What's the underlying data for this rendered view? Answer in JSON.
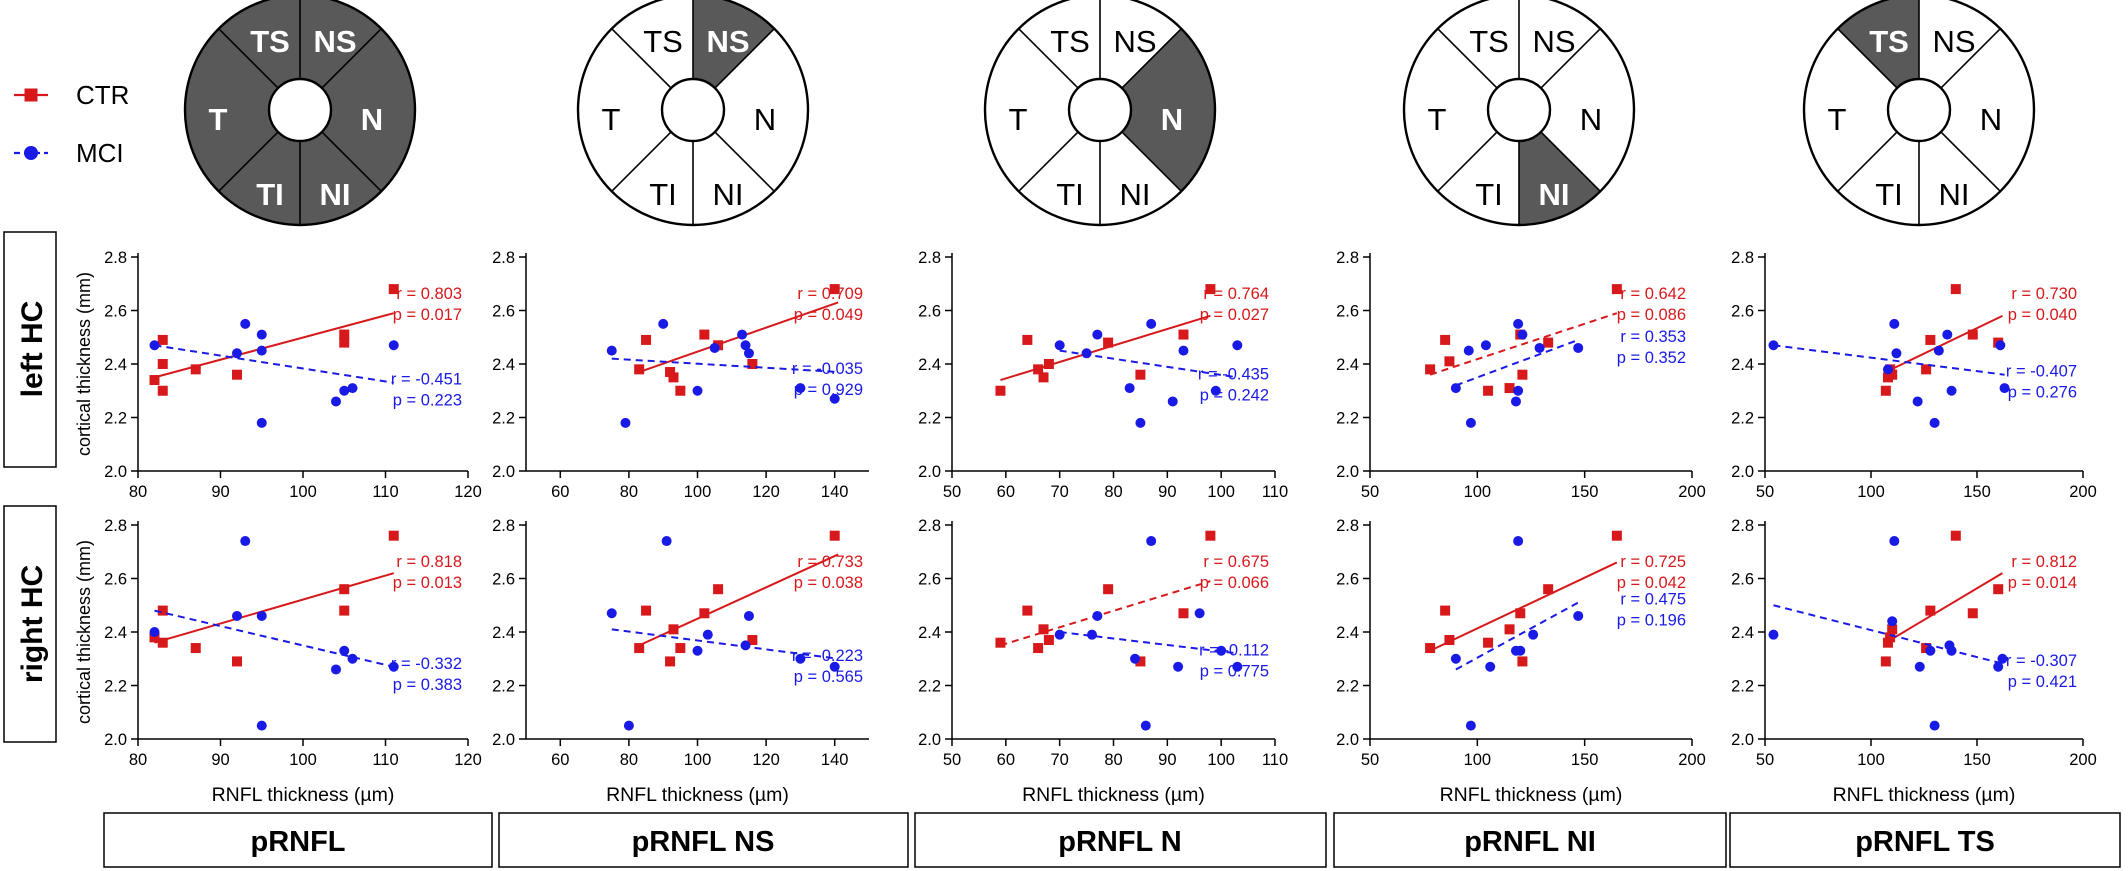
{
  "legend": {
    "items": [
      {
        "label": "CTR",
        "color": "#d7191c",
        "marker": "square",
        "line": "solid"
      },
      {
        "label": "MCI",
        "color": "#1a1ae6",
        "marker": "circle",
        "line": "dashed"
      }
    ]
  },
  "row_labels": [
    "left HC",
    "right HC"
  ],
  "column_labels": [
    "pRNFL",
    "pRNFL NS",
    "pRNFL N",
    "pRNFL NI",
    "pRNFL TS"
  ],
  "y_axis_label": "cortical thickness (mm)",
  "x_axis_label": "RNFL thickness  (µm)",
  "sector_labels": [
    "TS",
    "NS",
    "N",
    "NI",
    "TI",
    "T"
  ],
  "highlighted_sectors": [
    [
      "TS",
      "NS",
      "N",
      "NI",
      "TI",
      "T"
    ],
    [
      "NS"
    ],
    [
      "N"
    ],
    [
      "NI"
    ],
    [
      "TS"
    ]
  ],
  "colors": {
    "ctr": "#d7191c",
    "mci": "#1a1ae6",
    "sector_fill": "#595959",
    "sector_text_light": "#ffffff",
    "sector_text_dark": "#000000"
  },
  "chart_data": [
    {
      "type": "scatter",
      "column": "pRNFL",
      "row": "left HC",
      "xlim": [
        80,
        120
      ],
      "xticks": [
        80,
        90,
        100,
        110,
        120
      ],
      "ylim": [
        2.0,
        2.8
      ],
      "yticks": [
        "2.0",
        "2.2",
        "2.4",
        "2.6",
        "2.8"
      ],
      "xlabel": "",
      "ylabel": "cortical thickness (mm)",
      "series": [
        {
          "name": "CTR",
          "x": [
            82,
            83,
            83,
            83,
            87,
            92,
            105,
            105,
            111
          ],
          "y": [
            2.34,
            2.49,
            2.4,
            2.3,
            2.38,
            2.36,
            2.51,
            2.48,
            2.68
          ],
          "fit": [
            [
              82,
              2.35
            ],
            [
              111,
              2.59
            ]
          ],
          "fit_style": "solid",
          "r": "r = 0.803",
          "p": "p = 0.017"
        },
        {
          "name": "MCI",
          "x": [
            82,
            92,
            93,
            95,
            95,
            95,
            104,
            105,
            106,
            111
          ],
          "y": [
            2.47,
            2.44,
            2.55,
            2.51,
            2.45,
            2.18,
            2.26,
            2.3,
            2.31,
            2.47
          ],
          "fit": [
            [
              82,
              2.47
            ],
            [
              111,
              2.33
            ]
          ],
          "fit_style": "dashed",
          "r": "r = -0.451",
          "p": "p = 0.223"
        }
      ]
    },
    {
      "type": "scatter",
      "column": "pRNFL NS",
      "row": "left HC",
      "xlim": [
        50,
        150
      ],
      "xticks": [
        60,
        80,
        100,
        120,
        140
      ],
      "ylim": [
        2.0,
        2.8
      ],
      "yticks": [
        "2.0",
        "2.2",
        "2.4",
        "2.6",
        "2.8"
      ],
      "series": [
        {
          "name": "CTR",
          "x": [
            83,
            85,
            92,
            93,
            95,
            102,
            106,
            116,
            140
          ],
          "y": [
            2.38,
            2.49,
            2.37,
            2.35,
            2.3,
            2.51,
            2.47,
            2.4,
            2.68
          ],
          "fit": [
            [
              83,
              2.37
            ],
            [
              141,
              2.63
            ]
          ],
          "fit_style": "solid",
          "r": "r = 0.709",
          "p": "p = 0.049"
        },
        {
          "name": "MCI",
          "x": [
            75,
            79,
            90,
            100,
            105,
            113,
            114,
            115,
            130,
            140
          ],
          "y": [
            2.45,
            2.18,
            2.55,
            2.3,
            2.46,
            2.51,
            2.47,
            2.44,
            2.31,
            2.27
          ],
          "fit": [
            [
              75,
              2.42
            ],
            [
              141,
              2.37
            ]
          ],
          "fit_style": "dashed",
          "r": "r = -0.035",
          "p": "p = 0.929"
        }
      ]
    },
    {
      "type": "scatter",
      "column": "pRNFL N",
      "row": "left HC",
      "xlim": [
        50,
        110
      ],
      "xticks": [
        50,
        60,
        70,
        80,
        90,
        100,
        110
      ],
      "ylim": [
        2.0,
        2.8
      ],
      "yticks": [
        "2.0",
        "2.2",
        "2.4",
        "2.6",
        "2.8"
      ],
      "series": [
        {
          "name": "CTR",
          "x": [
            59,
            64,
            66,
            67,
            68,
            79,
            85,
            93,
            98
          ],
          "y": [
            2.3,
            2.49,
            2.38,
            2.35,
            2.4,
            2.48,
            2.36,
            2.51,
            2.68
          ],
          "fit": [
            [
              59,
              2.34
            ],
            [
              98,
              2.58
            ]
          ],
          "fit_style": "solid",
          "r": "r = 0.764",
          "p": "p = 0.027"
        },
        {
          "name": "MCI",
          "x": [
            70,
            75,
            77,
            83,
            85,
            87,
            91,
            93,
            99,
            103
          ],
          "y": [
            2.47,
            2.44,
            2.51,
            2.31,
            2.18,
            2.55,
            2.26,
            2.45,
            2.3,
            2.47
          ],
          "fit": [
            [
              70,
              2.45
            ],
            [
              103,
              2.35
            ]
          ],
          "fit_style": "dashed",
          "r": "r = -0.435",
          "p": "p = 0.242"
        }
      ]
    },
    {
      "type": "scatter",
      "column": "pRNFL NI",
      "row": "left HC",
      "xlim": [
        50,
        200
      ],
      "xticks": [
        50,
        100,
        150,
        200
      ],
      "ylim": [
        2.0,
        2.8
      ],
      "yticks": [
        "2.0",
        "2.2",
        "2.4",
        "2.6",
        "2.8"
      ],
      "series": [
        {
          "name": "CTR",
          "x": [
            78,
            85,
            87,
            105,
            115,
            120,
            121,
            133,
            165
          ],
          "y": [
            2.38,
            2.49,
            2.41,
            2.3,
            2.31,
            2.51,
            2.36,
            2.48,
            2.68
          ],
          "fit": [
            [
              78,
              2.36
            ],
            [
              165,
              2.59
            ]
          ],
          "fit_style": "dashed",
          "r": "r = 0.642",
          "p": "p = 0.086"
        },
        {
          "name": "MCI",
          "x": [
            90,
            96,
            97,
            104,
            118,
            119,
            119,
            121,
            129,
            147
          ],
          "y": [
            2.31,
            2.45,
            2.18,
            2.47,
            2.26,
            2.3,
            2.55,
            2.51,
            2.46,
            2.46
          ],
          "fit": [
            [
              90,
              2.32
            ],
            [
              147,
              2.49
            ]
          ],
          "fit_style": "dashed",
          "r": "r = 0.353",
          "p": "p = 0.352"
        }
      ]
    },
    {
      "type": "scatter",
      "column": "pRNFL TS",
      "row": "left HC",
      "xlim": [
        50,
        200
      ],
      "xticks": [
        50,
        100,
        150,
        200
      ],
      "ylim": [
        2.0,
        2.8
      ],
      "yticks": [
        "2.0",
        "2.2",
        "2.4",
        "2.6",
        "2.8"
      ],
      "series": [
        {
          "name": "CTR",
          "x": [
            107,
            108,
            109,
            110,
            126,
            128,
            140,
            148,
            160
          ],
          "y": [
            2.3,
            2.35,
            2.38,
            2.36,
            2.38,
            2.49,
            2.68,
            2.51,
            2.48
          ],
          "fit": [
            [
              107,
              2.37
            ],
            [
              162,
              2.58
            ]
          ],
          "fit_style": "solid",
          "r": "r = 0.730",
          "p": "p = 0.040"
        },
        {
          "name": "MCI",
          "x": [
            54,
            108,
            111,
            112,
            122,
            130,
            132,
            136,
            138,
            161,
            163
          ],
          "y": [
            2.47,
            2.38,
            2.55,
            2.44,
            2.26,
            2.18,
            2.45,
            2.51,
            2.3,
            2.47,
            2.31
          ],
          "fit": [
            [
              54,
              2.47
            ],
            [
              163,
              2.36
            ]
          ],
          "fit_style": "dashed",
          "r": "r = -0.407",
          "p": "p = 0.276"
        }
      ]
    },
    {
      "type": "scatter",
      "column": "pRNFL",
      "row": "right HC",
      "xlim": [
        80,
        120
      ],
      "xticks": [
        80,
        90,
        100,
        110,
        120
      ],
      "ylim": [
        2.0,
        2.8
      ],
      "yticks": [
        "2.0",
        "2.2",
        "2.4",
        "2.6",
        "2.8"
      ],
      "xlabel": "RNFL thickness  (µm)",
      "ylabel": "cortical thickness (mm)",
      "series": [
        {
          "name": "CTR",
          "x": [
            82,
            83,
            83,
            87,
            92,
            105,
            105,
            111
          ],
          "y": [
            2.38,
            2.48,
            2.36,
            2.34,
            2.29,
            2.56,
            2.48,
            2.76
          ],
          "fit": [
            [
              82,
              2.36
            ],
            [
              111,
              2.62
            ]
          ],
          "fit_style": "solid",
          "r": "r = 0.818",
          "p": "p = 0.013",
          "label_pos": "upper"
        },
        {
          "name": "MCI",
          "x": [
            82,
            92,
            93,
            95,
            95,
            104,
            105,
            106,
            111
          ],
          "y": [
            2.4,
            2.46,
            2.74,
            2.46,
            2.05,
            2.26,
            2.33,
            2.3,
            2.27
          ],
          "fit": [
            [
              82,
              2.48
            ],
            [
              111,
              2.27
            ]
          ],
          "fit_style": "dashed",
          "r": "r = -0.332",
          "p": "p = 0.383"
        }
      ]
    },
    {
      "type": "scatter",
      "column": "pRNFL NS",
      "row": "right HC",
      "xlim": [
        50,
        150
      ],
      "xticks": [
        60,
        80,
        100,
        120,
        140
      ],
      "ylim": [
        2.0,
        2.8
      ],
      "yticks": [
        "2.0",
        "2.2",
        "2.4",
        "2.6",
        "2.8"
      ],
      "xlabel": "RNFL thickness  (µm)",
      "series": [
        {
          "name": "CTR",
          "x": [
            83,
            85,
            92,
            93,
            95,
            102,
            106,
            116,
            140
          ],
          "y": [
            2.34,
            2.48,
            2.29,
            2.41,
            2.34,
            2.47,
            2.56,
            2.37,
            2.76
          ],
          "fit": [
            [
              83,
              2.35
            ],
            [
              141,
              2.69
            ]
          ],
          "fit_style": "solid",
          "r": "r = 0.733",
          "p": "p = 0.038",
          "label_pos": "upper"
        },
        {
          "name": "MCI",
          "x": [
            75,
            80,
            91,
            100,
            103,
            114,
            115,
            130,
            140
          ],
          "y": [
            2.47,
            2.05,
            2.74,
            2.33,
            2.39,
            2.35,
            2.46,
            2.3,
            2.27
          ],
          "fit": [
            [
              75,
              2.41
            ],
            [
              141,
              2.3
            ]
          ],
          "fit_style": "dashed",
          "r": "r = -0.223",
          "p": "p = 0.565"
        }
      ]
    },
    {
      "type": "scatter",
      "column": "pRNFL N",
      "row": "right HC",
      "xlim": [
        50,
        110
      ],
      "xticks": [
        50,
        60,
        70,
        80,
        90,
        100,
        110
      ],
      "ylim": [
        2.0,
        2.8
      ],
      "yticks": [
        "2.0",
        "2.2",
        "2.4",
        "2.6",
        "2.8"
      ],
      "xlabel": "RNFL thickness  (µm)",
      "series": [
        {
          "name": "CTR",
          "x": [
            59,
            64,
            66,
            67,
            68,
            79,
            85,
            93,
            98
          ],
          "y": [
            2.36,
            2.48,
            2.34,
            2.41,
            2.37,
            2.56,
            2.29,
            2.47,
            2.76
          ],
          "fit": [
            [
              59,
              2.35
            ],
            [
              98,
              2.59
            ]
          ],
          "fit_style": "dashed",
          "r": "r = 0.675",
          "p": "p = 0.066",
          "label_pos": "upper"
        },
        {
          "name": "MCI",
          "x": [
            70,
            76,
            77,
            84,
            86,
            87,
            92,
            96,
            100,
            103
          ],
          "y": [
            2.39,
            2.39,
            2.46,
            2.3,
            2.05,
            2.74,
            2.27,
            2.47,
            2.33,
            2.27
          ],
          "fit": [
            [
              70,
              2.4
            ],
            [
              103,
              2.32
            ]
          ],
          "fit_style": "dashed",
          "r": "r = -0.112",
          "p": "p = 0.775"
        }
      ]
    },
    {
      "type": "scatter",
      "column": "pRNFL NI",
      "row": "right HC",
      "xlim": [
        50,
        200
      ],
      "xticks": [
        50,
        100,
        150,
        200
      ],
      "ylim": [
        2.0,
        2.8
      ],
      "yticks": [
        "2.0",
        "2.2",
        "2.4",
        "2.6",
        "2.8"
      ],
      "xlabel": "RNFL thickness  (µm)",
      "series": [
        {
          "name": "CTR",
          "x": [
            78,
            85,
            87,
            105,
            115,
            120,
            121,
            133,
            165
          ],
          "y": [
            2.34,
            2.48,
            2.37,
            2.36,
            2.41,
            2.47,
            2.29,
            2.56,
            2.76
          ],
          "fit": [
            [
              78,
              2.33
            ],
            [
              165,
              2.66
            ]
          ],
          "fit_style": "solid",
          "r": "r = 0.725",
          "p": "p = 0.042",
          "label_pos": "upper"
        },
        {
          "name": "MCI",
          "x": [
            90,
            97,
            106,
            118,
            119,
            120,
            126,
            147
          ],
          "y": [
            2.3,
            2.05,
            2.27,
            2.33,
            2.74,
            2.33,
            2.39,
            2.46
          ],
          "fit": [
            [
              90,
              2.26
            ],
            [
              147,
              2.51
            ]
          ],
          "fit_style": "dashed",
          "r": "r = 0.475",
          "p": "p = 0.196"
        }
      ]
    },
    {
      "type": "scatter",
      "column": "pRNFL TS",
      "row": "right HC",
      "xlim": [
        50,
        200
      ],
      "xticks": [
        50,
        100,
        150,
        200
      ],
      "ylim": [
        2.0,
        2.8
      ],
      "yticks": [
        "2.0",
        "2.2",
        "2.4",
        "2.6",
        "2.8"
      ],
      "xlabel": "RNFL thickness  (µm)",
      "series": [
        {
          "name": "CTR",
          "x": [
            107,
            108,
            109,
            110,
            126,
            128,
            140,
            148,
            160
          ],
          "y": [
            2.29,
            2.36,
            2.38,
            2.41,
            2.34,
            2.48,
            2.76,
            2.47,
            2.56
          ],
          "fit": [
            [
              107,
              2.36
            ],
            [
              162,
              2.62
            ]
          ],
          "fit_style": "solid",
          "r": "r = 0.812",
          "p": "p = 0.014",
          "label_pos": "upper"
        },
        {
          "name": "MCI",
          "x": [
            54,
            110,
            111,
            123,
            128,
            130,
            137,
            138,
            160,
            162
          ],
          "y": [
            2.39,
            2.44,
            2.74,
            2.27,
            2.33,
            2.05,
            2.35,
            2.33,
            2.27,
            2.3
          ],
          "fit": [
            [
              54,
              2.5
            ],
            [
              163,
              2.28
            ]
          ],
          "fit_style": "dashed",
          "r": "r = -0.307",
          "p": "p = 0.421"
        }
      ]
    }
  ]
}
